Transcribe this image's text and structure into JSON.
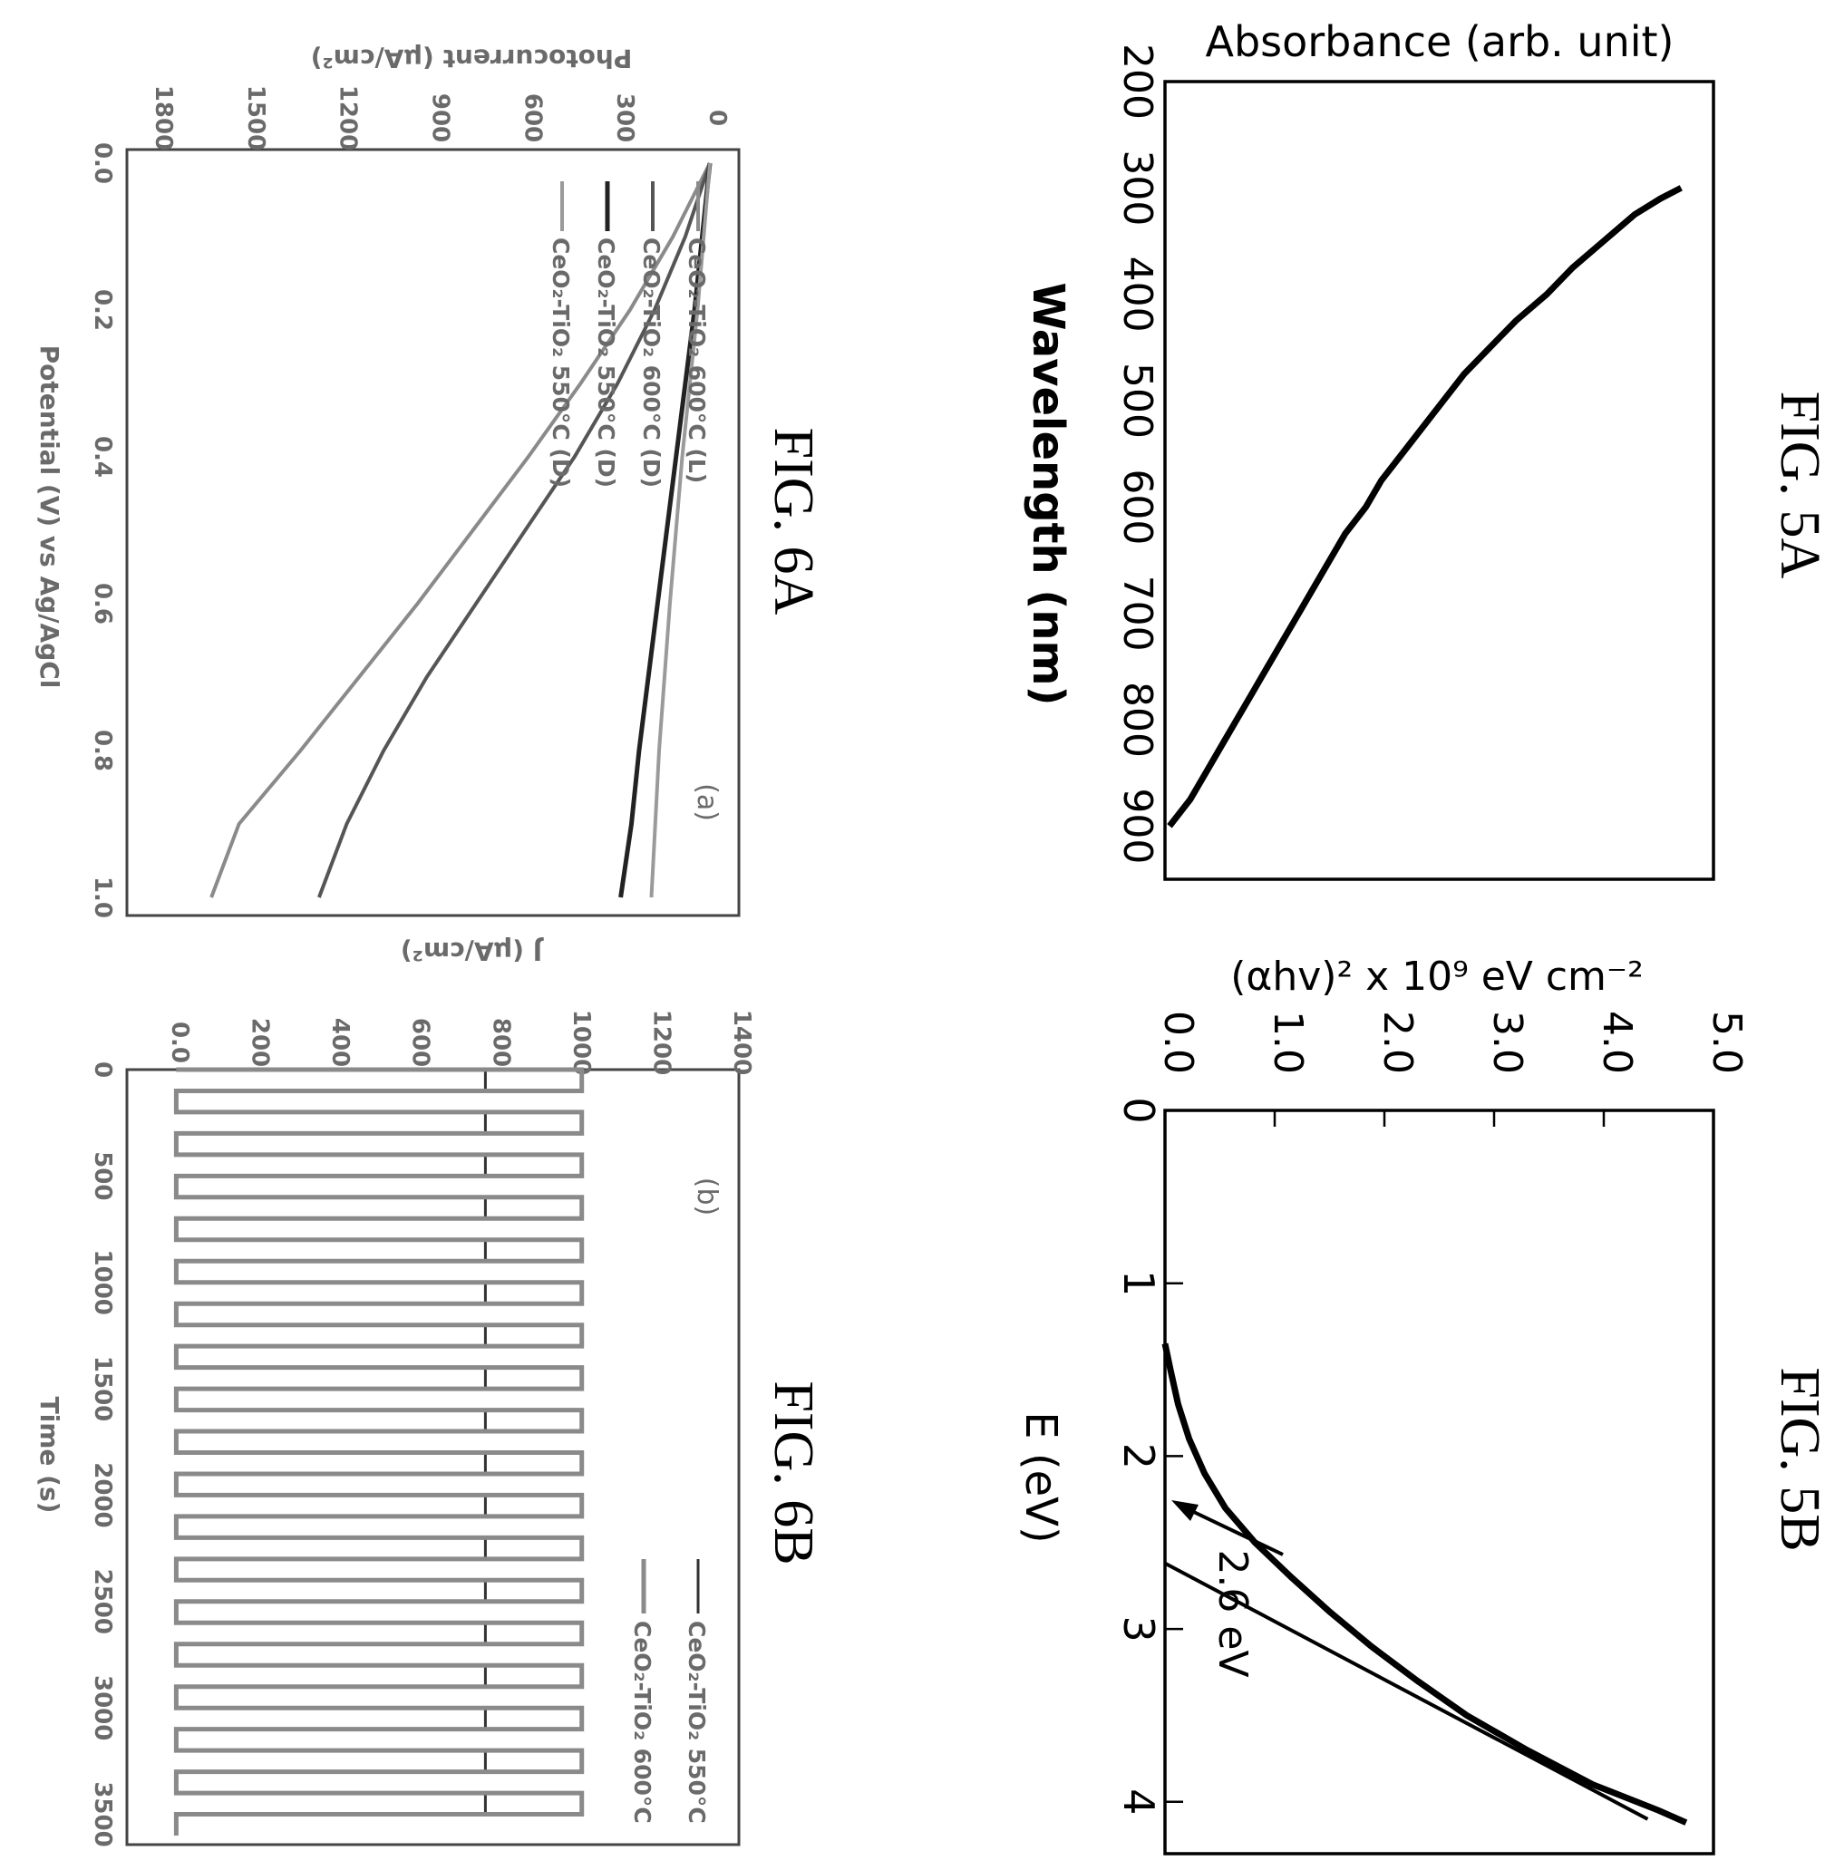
{
  "chart_data": [
    {
      "figure": "FIG. 5A",
      "type": "line",
      "xlabel": "Wavelength (nm)",
      "ylabel": "Absorbance (arb. unit)",
      "xlim": [
        200,
        950
      ],
      "x_ticks": [
        "200",
        "300",
        "400",
        "500",
        "600",
        "700",
        "800",
        "900"
      ],
      "y_ticks_shown": false,
      "series": [
        {
          "x": [
            300,
            310,
            325,
            350,
            375,
            400,
            425,
            450,
            475,
            500,
            525,
            550,
            575,
            600,
            625,
            650,
            675,
            700,
            725,
            750,
            775,
            800,
            825,
            850,
            875,
            900
          ],
          "y": [
            0.99,
            0.95,
            0.9,
            0.84,
            0.78,
            0.73,
            0.67,
            0.62,
            0.57,
            0.53,
            0.49,
            0.45,
            0.41,
            0.38,
            0.34,
            0.31,
            0.28,
            0.25,
            0.22,
            0.19,
            0.16,
            0.13,
            0.1,
            0.07,
            0.04,
            0.0
          ]
        }
      ]
    },
    {
      "figure": "FIG. 5B",
      "type": "line",
      "xlabel": "E (eV)",
      "ylabel": "(αhv)² x 10⁹ eV cm⁻²",
      "xlim": [
        0,
        4.3
      ],
      "ylim": [
        0,
        5.0
      ],
      "x_ticks": [
        "0",
        "1",
        "2",
        "3",
        "4"
      ],
      "y_ticks": [
        "0.0",
        "1.0",
        "2.0",
        "3.0",
        "4.0",
        "5.0"
      ],
      "annotation": "2.6 eV",
      "series": [
        {
          "x": [
            1.35,
            1.5,
            1.7,
            1.9,
            2.1,
            2.3,
            2.5,
            2.7,
            2.9,
            3.1,
            3.3,
            3.5,
            3.7,
            3.9,
            4.05,
            4.12
          ],
          "y": [
            0.0,
            0.05,
            0.12,
            0.22,
            0.36,
            0.55,
            0.82,
            1.15,
            1.5,
            1.88,
            2.3,
            2.75,
            3.3,
            3.9,
            4.5,
            4.75
          ]
        },
        {
          "x": [
            2.62,
            4.1
          ],
          "y": [
            0.0,
            4.4
          ]
        }
      ]
    },
    {
      "figure": "FIG. 6A",
      "type": "line",
      "panel_label": "(a)",
      "xlabel": "Potential (V) vs Ag/AgCl",
      "ylabel": "Photocurrent (μA/cm²)",
      "xlim": [
        0.0,
        1.0
      ],
      "ylim": [
        -50,
        1850
      ],
      "x_ticks": [
        "0.0",
        "0.2",
        "0.4",
        "0.6",
        "0.8",
        "1.0"
      ],
      "y_ticks": [
        "0",
        "300",
        "600",
        "900",
        "1200",
        "1500",
        "1800"
      ],
      "series": [
        {
          "name": "CeO₂-TiO₂ 600°C (L)",
          "x": [
            0.0,
            0.1,
            0.2,
            0.3,
            0.4,
            0.5,
            0.6,
            0.7,
            0.8,
            0.9,
            1.0
          ],
          "y": [
            0,
            120,
            260,
            420,
            590,
            770,
            950,
            1140,
            1330,
            1530,
            1620
          ]
        },
        {
          "name": "CeO₂-TiO₂ 600°C (D)",
          "x": [
            0.0,
            0.1,
            0.2,
            0.3,
            0.4,
            0.5,
            0.6,
            0.7,
            0.8,
            0.9,
            1.0
          ],
          "y": [
            0,
            80,
            180,
            300,
            440,
            600,
            760,
            920,
            1060,
            1180,
            1270
          ]
        },
        {
          "name": "CeO₂-TiO₂ 550°C (D)",
          "x": [
            0.0,
            0.2,
            0.4,
            0.6,
            0.8,
            0.9,
            1.0
          ],
          "y": [
            0,
            50,
            110,
            170,
            230,
            255,
            290
          ]
        },
        {
          "name": "CeO₂-TiO₂ 550°C (D)",
          "x": [
            0.0,
            0.2,
            0.4,
            0.6,
            0.8,
            1.0
          ],
          "y": [
            0,
            40,
            90,
            130,
            165,
            190
          ]
        }
      ]
    },
    {
      "figure": "FIG. 6B",
      "type": "line",
      "panel_label": "(b)",
      "xlabel": "Time (s)",
      "ylabel": "J (μA/cm²)",
      "xlim": [
        0,
        3600
      ],
      "ylim": [
        0,
        1400
      ],
      "x_ticks": [
        "0",
        "500",
        "1000",
        "1500",
        "2000",
        "2500",
        "3000",
        "3500"
      ],
      "y_ticks": [
        "0.0",
        "200",
        "400",
        "600",
        "800",
        "1000",
        "1200",
        "1400"
      ],
      "series": [
        {
          "name": "CeO₂-TiO₂ 550°C",
          "style": "pulses",
          "on_value": 780,
          "off_value": 10,
          "period": 200,
          "duty": 0.5
        },
        {
          "name": "CeO₂-TiO₂ 600°C",
          "style": "pulses",
          "on_value": 1020,
          "off_value": 10,
          "period": 200,
          "duty": 0.5
        }
      ]
    }
  ],
  "colors": {
    "line_black": "#000000",
    "line_gray": "#666666",
    "line_dark_gray": "#333333"
  }
}
